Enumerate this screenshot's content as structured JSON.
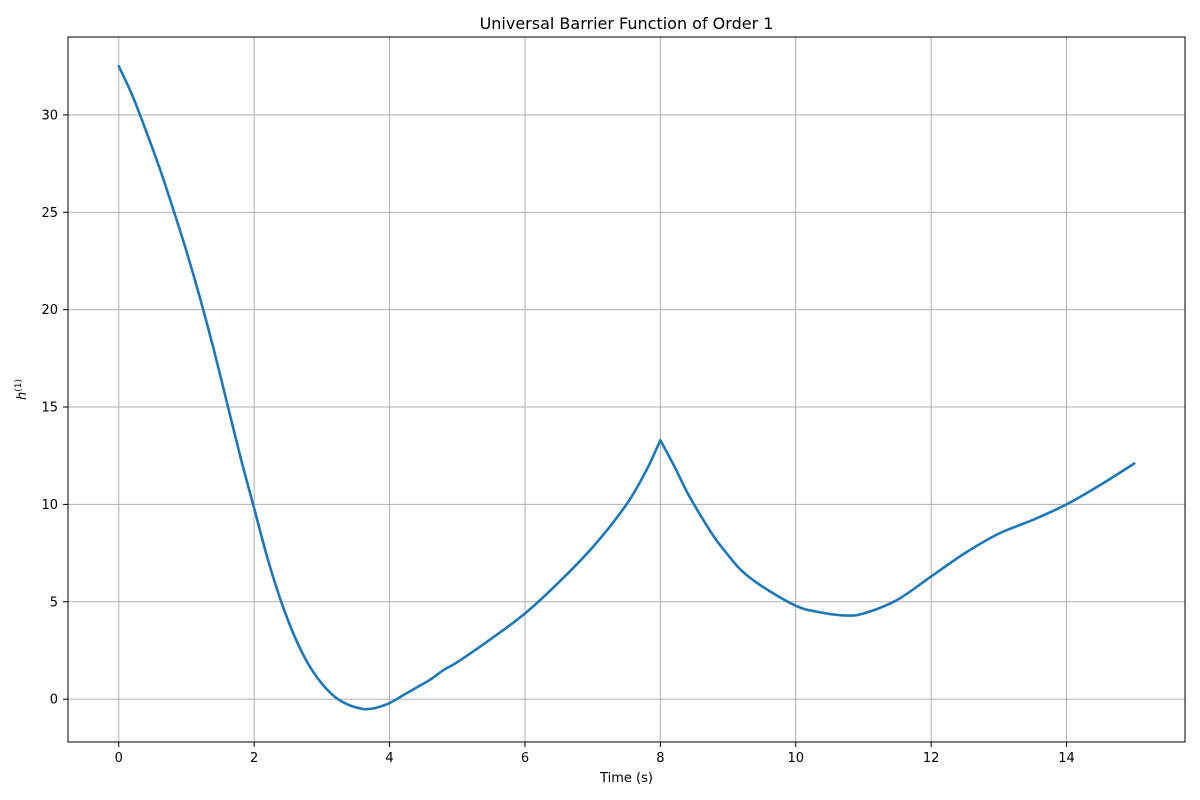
{
  "chart_data": {
    "type": "line",
    "title": "Universal Barrier Function of Order 1",
    "xlabel": "Time (s)",
    "ylabel": "h^(1)",
    "ylabel_base": "h",
    "ylabel_sup": "(1)",
    "xlim": [
      -0.75,
      15.75
    ],
    "ylim": [
      -2.2,
      34.0
    ],
    "xticks": [
      0,
      2,
      4,
      6,
      8,
      10,
      12,
      14
    ],
    "yticks": [
      0,
      5,
      10,
      15,
      20,
      25,
      30
    ],
    "grid": true,
    "line_color": "#1f77b4",
    "series": [
      {
        "x": [
          0.0,
          0.2,
          0.4,
          0.6,
          0.8,
          1.0,
          1.2,
          1.4,
          1.6,
          1.8,
          2.0,
          2.2,
          2.4,
          2.6,
          2.8,
          3.0,
          3.2,
          3.4,
          3.6,
          3.7,
          3.8,
          4.0,
          4.2,
          4.4,
          4.6,
          4.8,
          5.0,
          5.5,
          6.0,
          6.5,
          7.0,
          7.5,
          7.8,
          8.0,
          8.2,
          8.4,
          8.6,
          8.8,
          9.0,
          9.2,
          9.5,
          10.0,
          10.3,
          10.7,
          11.0,
          11.5,
          12.0,
          12.5,
          13.0,
          13.5,
          14.0,
          14.5,
          15.0
        ],
        "y": [
          32.5,
          31.0,
          29.2,
          27.3,
          25.2,
          23.0,
          20.6,
          18.0,
          15.2,
          12.4,
          9.8,
          7.2,
          5.0,
          3.2,
          1.8,
          0.8,
          0.1,
          -0.3,
          -0.5,
          -0.5,
          -0.45,
          -0.2,
          0.2,
          0.6,
          1.0,
          1.5,
          1.9,
          3.1,
          4.4,
          6.0,
          7.8,
          10.0,
          11.8,
          13.3,
          12.0,
          10.6,
          9.4,
          8.3,
          7.4,
          6.6,
          5.8,
          4.8,
          4.5,
          4.3,
          4.4,
          5.1,
          6.3,
          7.5,
          8.5,
          9.2,
          10.0,
          11.0,
          12.1
        ]
      }
    ]
  }
}
